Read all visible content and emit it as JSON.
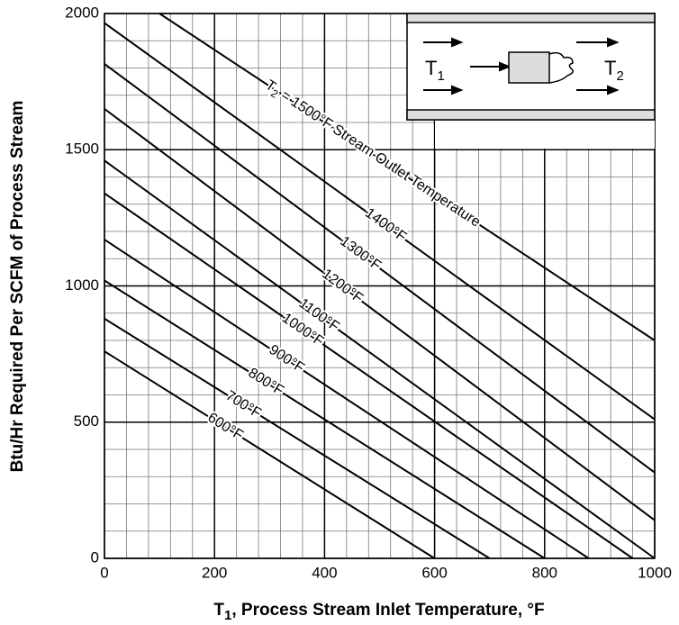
{
  "chart_data": {
    "type": "line",
    "xlabel": {
      "symbol": "T",
      "subscript": "1",
      "text": ", Process Stream Inlet Temperature, °F"
    },
    "ylabel": "Btu/Hr Required Per SCFM of Process Stream",
    "xlim": [
      0,
      1000
    ],
    "ylim": [
      0,
      2000
    ],
    "xticks": [
      0,
      200,
      400,
      600,
      800,
      1000
    ],
    "yticks": [
      0,
      500,
      1000,
      1500,
      2000
    ],
    "xminor": [
      0,
      40,
      80,
      120,
      160,
      200,
      240,
      280,
      320,
      360,
      400,
      440,
      480,
      520,
      560,
      600,
      640,
      680,
      720,
      760,
      800,
      840,
      880,
      920,
      960,
      1000
    ],
    "yminor": [
      0,
      100,
      200,
      300,
      400,
      500,
      600,
      700,
      800,
      900,
      1000,
      1100,
      1200,
      1300,
      1400,
      1500,
      1600,
      1700,
      1800,
      1900,
      2000
    ],
    "grid": true,
    "color": "#000000",
    "series": [
      {
        "name": "600°F",
        "x": [
          0,
          600
        ],
        "values": [
          760,
          0
        ]
      },
      {
        "name": "700°F",
        "x": [
          0,
          700
        ],
        "values": [
          880,
          0
        ]
      },
      {
        "name": "800°F",
        "x": [
          0,
          800
        ],
        "values": [
          1020,
          0
        ]
      },
      {
        "name": "900°F",
        "x": [
          0,
          880
        ],
        "values": [
          1170,
          0
        ]
      },
      {
        "name": "1000°F",
        "x": [
          0,
          960
        ],
        "values": [
          1340,
          0
        ]
      },
      {
        "name": "1100°F",
        "x": [
          0,
          1000
        ],
        "values": [
          1460,
          0
        ]
      },
      {
        "name": "1200°F",
        "x": [
          0,
          1000
        ],
        "values": [
          1650,
          140
        ]
      },
      {
        "name": "1300°F",
        "x": [
          0,
          1000
        ],
        "values": [
          1815,
          315
        ]
      },
      {
        "name": "1400°F",
        "x": [
          0,
          1000
        ],
        "values": [
          1965,
          510
        ]
      },
      {
        "name": "1500°F",
        "x": [
          100,
          1000
        ],
        "values": [
          2000,
          800
        ]
      }
    ],
    "outlet_label": {
      "symbol": "T",
      "subscript": "2",
      "relation": "=",
      "text": "Stream Outlet Temperature"
    },
    "inset": {
      "inlet": "T",
      "inlet_sub": "1",
      "outlet": "T",
      "outlet_sub": "2"
    }
  }
}
